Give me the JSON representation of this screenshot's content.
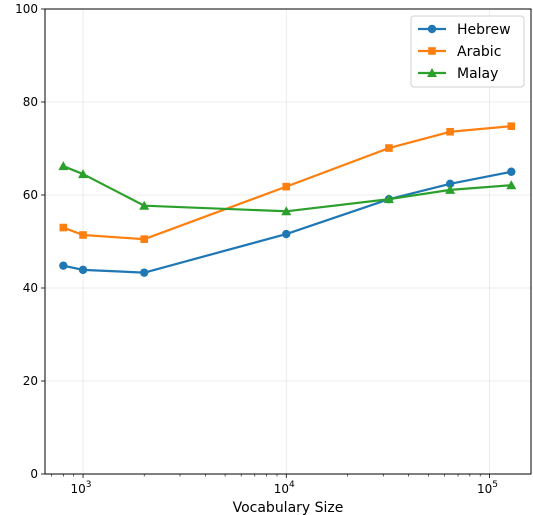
{
  "chart_data": {
    "type": "line",
    "xlabel": "Vocabulary Size",
    "ylabel": "",
    "xscale": "log",
    "xlim": [
      650,
      160000
    ],
    "ylim": [
      0,
      100
    ],
    "x_ticks": [
      {
        "value": 1000,
        "base": "10",
        "exp": "3"
      },
      {
        "value": 10000,
        "base": "10",
        "exp": "4"
      },
      {
        "value": 100000,
        "base": "10",
        "exp": "5"
      }
    ],
    "y_ticks": [
      "0",
      "20",
      "40",
      "60",
      "80",
      "100"
    ],
    "grid": true,
    "legend_position": "top-right",
    "series": [
      {
        "name": "Hebrew",
        "color": "#1f77b4",
        "marker": "circle",
        "x": [
          800,
          1000,
          2000,
          10000,
          32000,
          64000,
          128000
        ],
        "values": [
          44.8,
          43.9,
          43.3,
          51.6,
          59.1,
          62.4,
          65.0
        ]
      },
      {
        "name": "Arabic",
        "color": "#ff7f0e",
        "marker": "square",
        "x": [
          800,
          1000,
          2000,
          10000,
          32000,
          64000,
          128000
        ],
        "values": [
          53.0,
          51.4,
          50.5,
          61.8,
          70.1,
          73.6,
          74.8
        ]
      },
      {
        "name": "Malay",
        "color": "#2ca02c",
        "marker": "triangle",
        "x": [
          800,
          1000,
          2000,
          10000,
          32000,
          64000,
          128000
        ],
        "values": [
          66.2,
          64.5,
          57.7,
          56.5,
          59.1,
          61.1,
          62.1
        ]
      }
    ]
  }
}
